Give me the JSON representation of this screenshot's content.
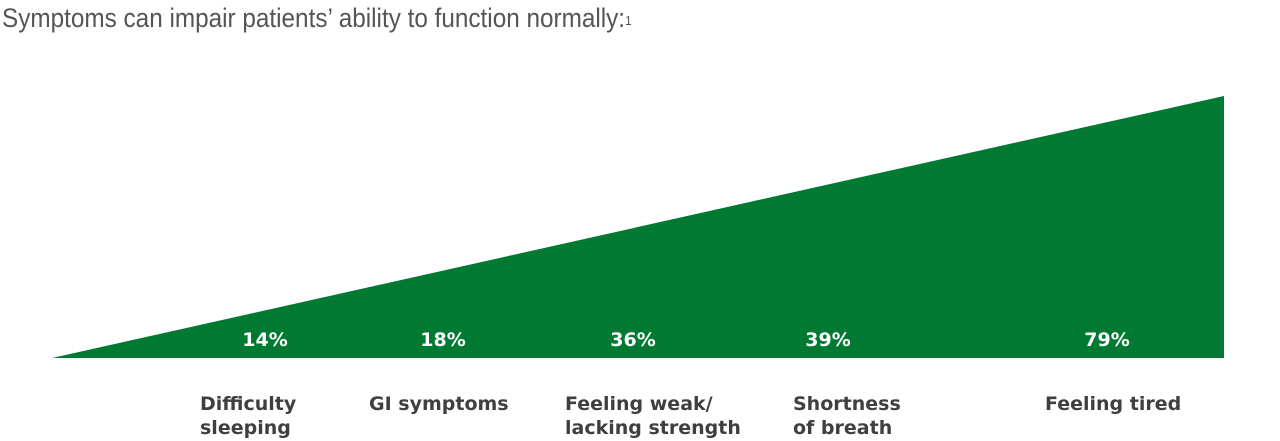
{
  "heading": {
    "text": "Symptoms can impair patients’ ability to function normally:",
    "superscript": "1"
  },
  "chart_data": {
    "type": "area",
    "colors": {
      "fill": "#007a33",
      "value_text": "#ffffff",
      "category_text": "#3f3f3f"
    },
    "categories": [
      "Difficulty sleeping",
      "GI symptoms",
      "Feeling weak/ lacking strength",
      "Shortness of breath",
      "Feeling tired"
    ],
    "category_lines": [
      [
        "Difficulty",
        "sleeping"
      ],
      [
        "GI symptoms"
      ],
      [
        "Feeling weak/",
        "lacking strength"
      ],
      [
        "Shortness",
        "of breath"
      ],
      [
        "Feeling tired"
      ]
    ],
    "values": [
      14,
      18,
      36,
      39,
      79
    ],
    "value_labels": [
      "14%",
      "18%",
      "36%",
      "39%",
      "79%"
    ]
  }
}
